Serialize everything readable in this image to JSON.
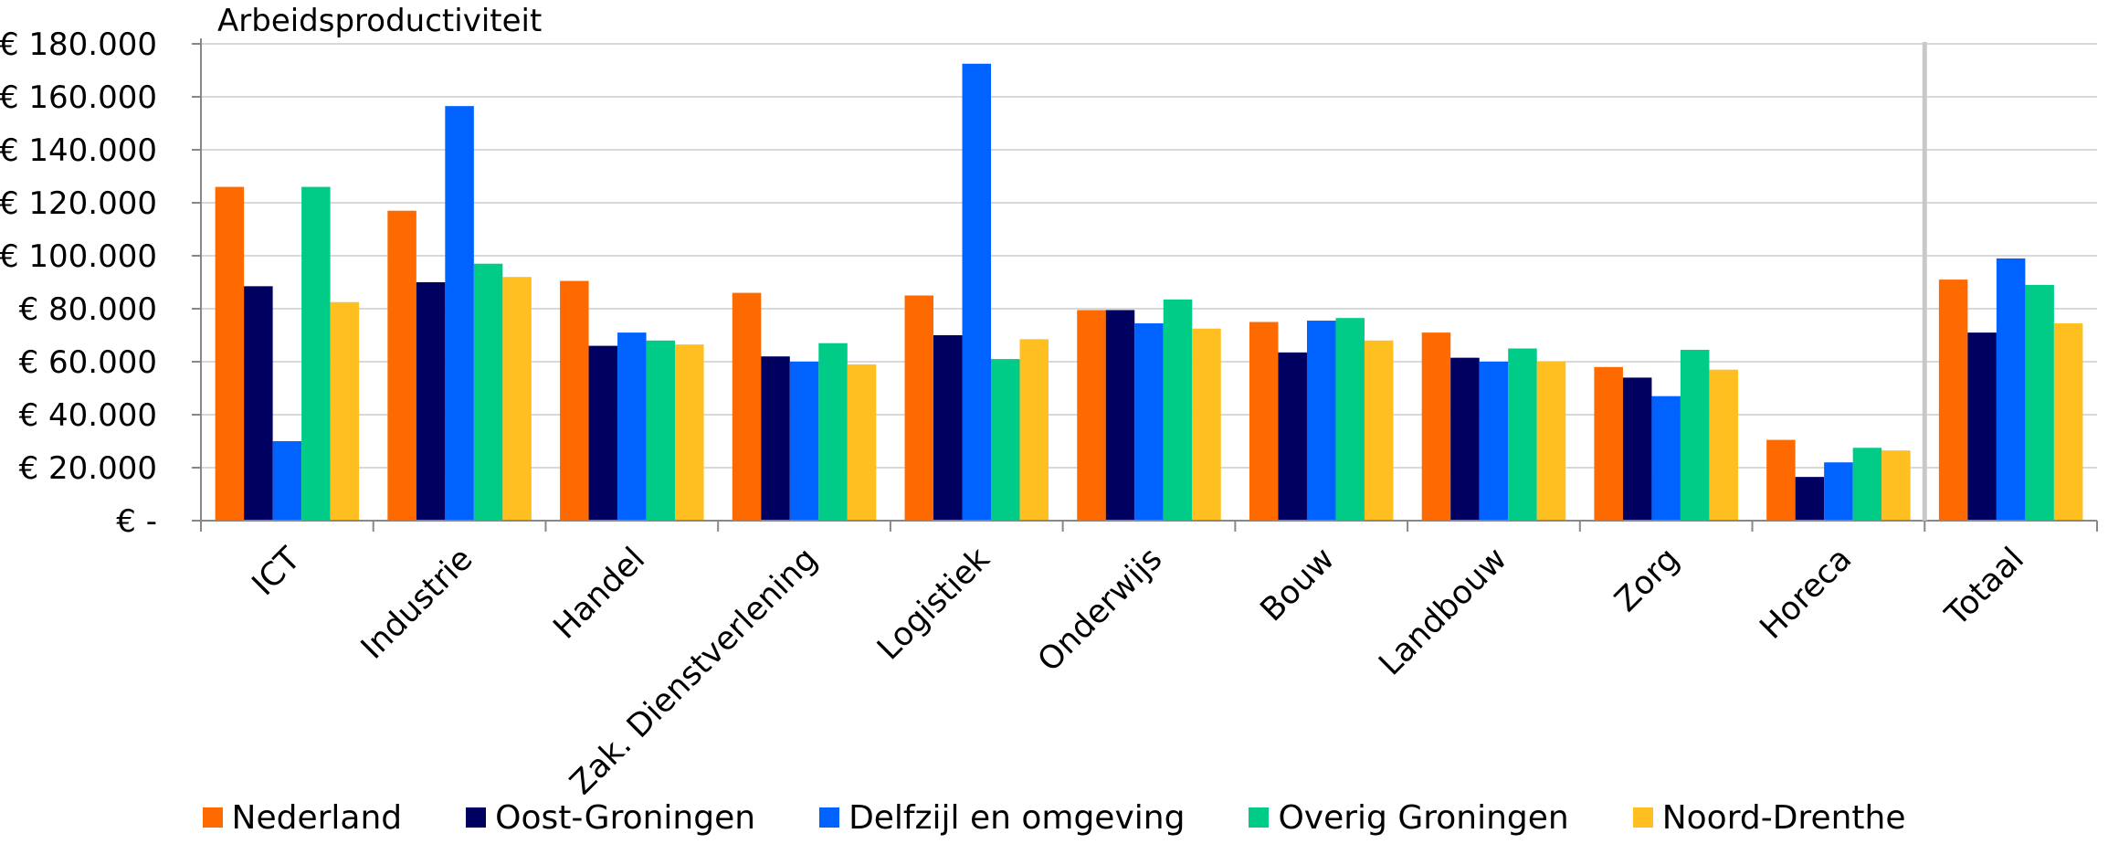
{
  "chart_data": {
    "type": "bar",
    "title": "Arbeidsproductiviteit",
    "categories": [
      "ICT",
      "Industrie",
      "Handel",
      "Zak. Dienstverlening",
      "Logistiek",
      "Onderwijs",
      "Bouw",
      "Landbouw",
      "Zorg",
      "Horeca",
      "Totaal"
    ],
    "series": [
      {
        "name": "Nederland",
        "color": "#ff6a00",
        "values": [
          126000,
          117000,
          90500,
          86000,
          85000,
          79500,
          75000,
          71000,
          58000,
          30500,
          91000
        ]
      },
      {
        "name": "Oost-Groningen",
        "color": "#000060",
        "values": [
          88500,
          90000,
          66000,
          62000,
          70000,
          79500,
          63500,
          61500,
          54000,
          16500,
          71000
        ]
      },
      {
        "name": "Delfzijl en omgeving",
        "color": "#0062ff",
        "values": [
          30000,
          156500,
          71000,
          60000,
          172500,
          74500,
          75500,
          60000,
          47000,
          22000,
          99000
        ]
      },
      {
        "name": "Overig Groningen",
        "color": "#00cc88",
        "values": [
          126000,
          97000,
          68000,
          67000,
          61000,
          83500,
          76500,
          65000,
          64500,
          27500,
          89000
        ]
      },
      {
        "name": "Noord-Drenthe",
        "color": "#ffbf20",
        "values": [
          82500,
          92000,
          66500,
          59000,
          68500,
          72500,
          68000,
          60000,
          57000,
          26500,
          74500
        ]
      }
    ],
    "yticks": [
      "€ -",
      "€ 20.000",
      "€ 40.000",
      "€ 60.000",
      "€ 80.000",
      "€ 100.000",
      "€ 120.000",
      "€ 140.000",
      "€ 160.000",
      "€ 180.000"
    ],
    "ylim": [
      0,
      180000
    ],
    "grid": true,
    "legend_position": "bottom"
  }
}
